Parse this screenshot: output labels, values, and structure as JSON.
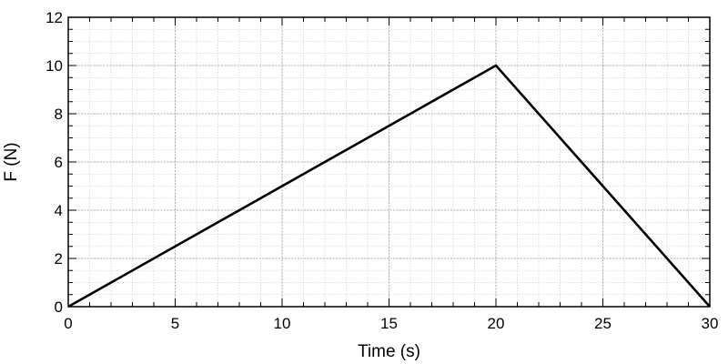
{
  "chart_data": {
    "type": "line",
    "title": "",
    "xlabel": "Time (s)",
    "ylabel": "F (N)",
    "xlim": [
      0,
      30
    ],
    "ylim": [
      0,
      12
    ],
    "x_ticks": [
      0,
      5,
      10,
      15,
      20,
      25,
      30
    ],
    "y_ticks": [
      0,
      2,
      4,
      6,
      8,
      10,
      12
    ],
    "x_tick_labels": [
      "0",
      "5",
      "10",
      "15",
      "20",
      "25",
      "30"
    ],
    "y_tick_labels": [
      "0",
      "2",
      "4",
      "6",
      "8",
      "10",
      "12"
    ],
    "grid": true,
    "minor_grid": true,
    "series": [
      {
        "x": [
          0,
          20,
          30
        ],
        "y": [
          0,
          10,
          0
        ],
        "color": "#000000"
      }
    ]
  }
}
